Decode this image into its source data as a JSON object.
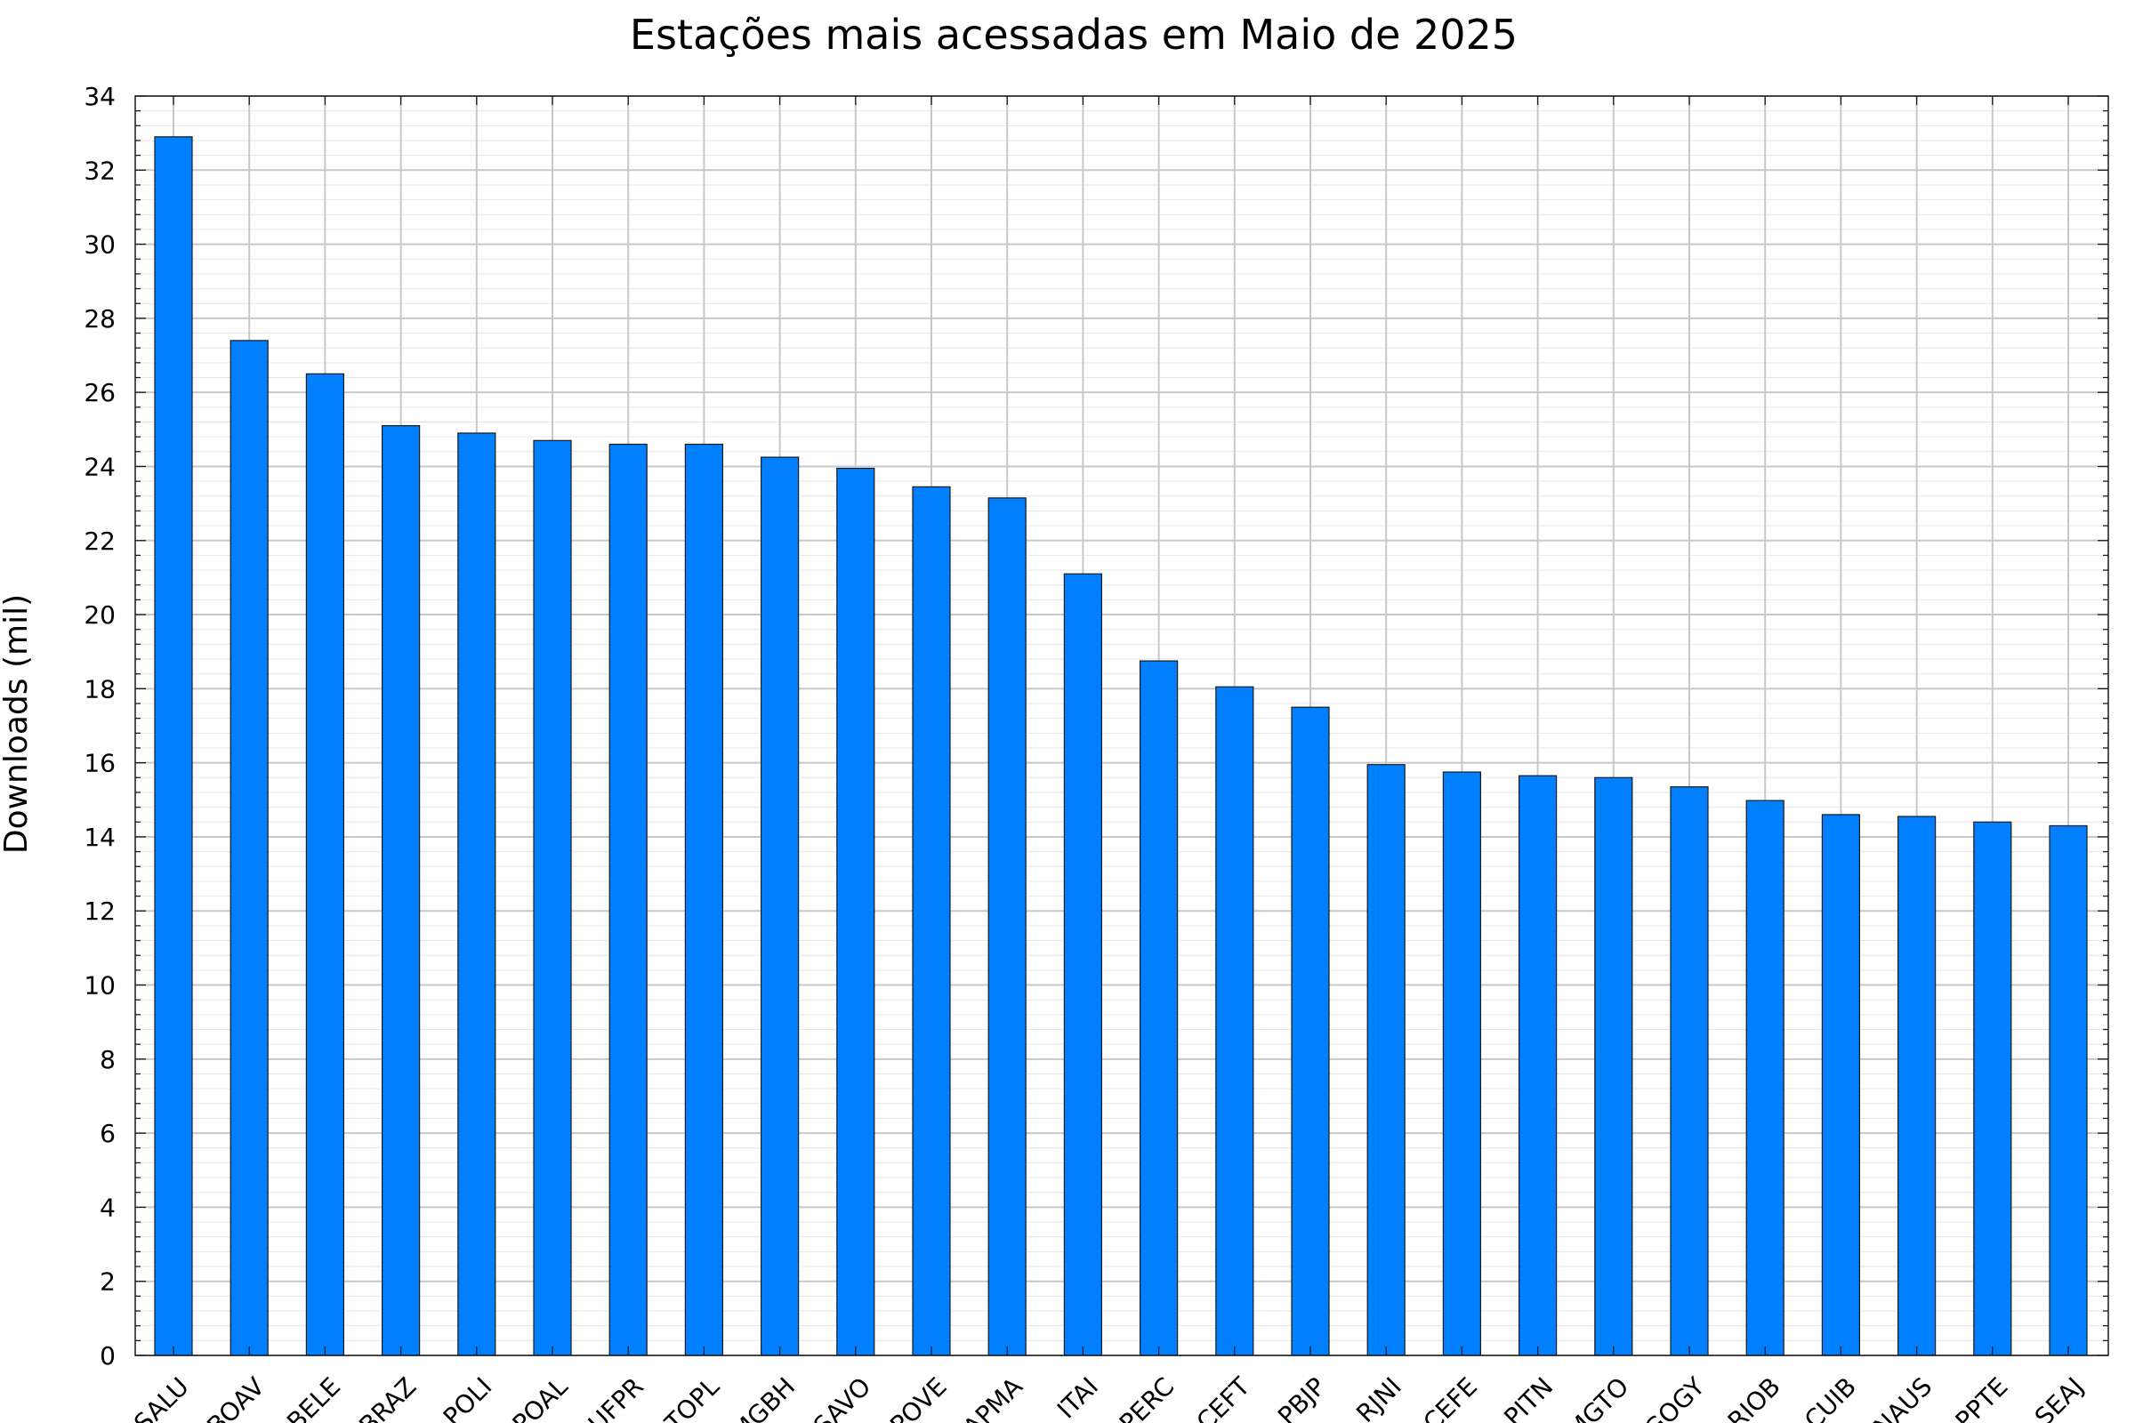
{
  "chart_data": {
    "type": "bar",
    "title": "Estações mais acessadas em Maio de 2025",
    "xlabel": "",
    "ylabel": "Downloads (mil)",
    "ylim": [
      0,
      34
    ],
    "yticks": [
      0,
      2,
      4,
      6,
      8,
      10,
      12,
      14,
      16,
      18,
      20,
      22,
      24,
      26,
      28,
      30,
      32,
      34
    ],
    "grid": true,
    "bar_color": "#007fff",
    "categories": [
      "SALU",
      "BOAV",
      "BELE",
      "BRAZ",
      "POLI",
      "POAL",
      "UFPR",
      "TOPL",
      "MGBH",
      "SAVO",
      "POVE",
      "APMA",
      "ITAI",
      "PERC",
      "CEFT",
      "PBJP",
      "RJNI",
      "CEFE",
      "PITN",
      "MGTO",
      "GOGY",
      "RIOB",
      "CUIB",
      "NAUS",
      "PPTE",
      "SEAJ"
    ],
    "values": [
      32.9,
      27.4,
      26.5,
      25.1,
      24.9,
      24.7,
      24.6,
      24.6,
      24.25,
      23.95,
      23.45,
      23.15,
      21.1,
      18.75,
      18.05,
      17.5,
      15.95,
      15.75,
      15.65,
      15.6,
      15.35,
      14.98,
      14.6,
      14.55,
      14.4,
      14.3
    ]
  }
}
